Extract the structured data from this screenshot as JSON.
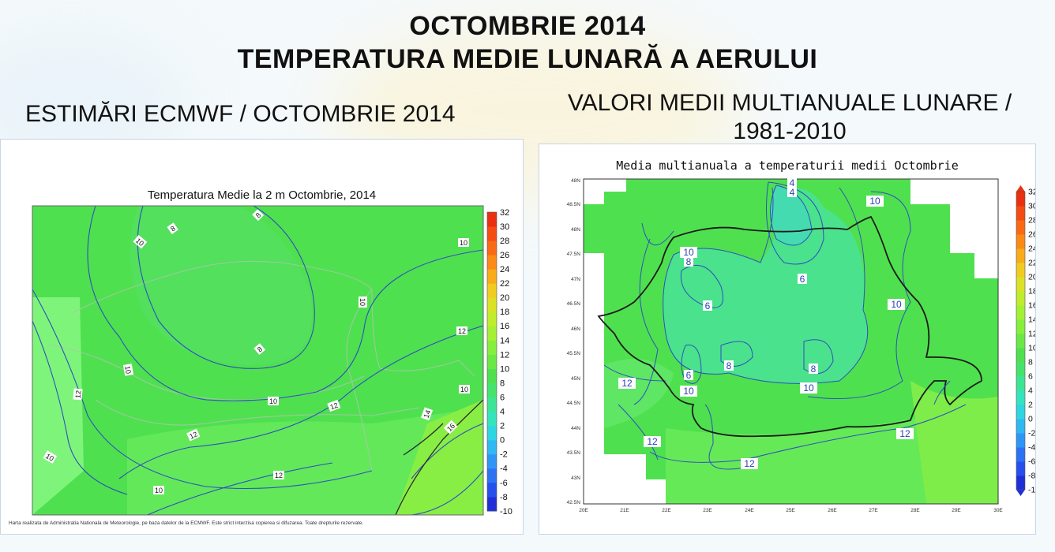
{
  "header": {
    "title_line1": "OCTOMBRIE 2014",
    "title_line2": "TEMPERATURA MEDIE LUNARĂ A AERULUI"
  },
  "left_panel": {
    "heading": "ESTIMĂRI ECMWF / OCTOMBRIE 2014",
    "map_title": "Temperatura Medie la 2 m Octombrie, 2014",
    "credit": "Harta realizata de Administratia Nationala de Meteorologie, pe baza datelor de la ECMWF. Este strict interzisa copierea si difuzarea. Toate drepturile rezervate.",
    "contour_labels": [
      "8",
      "8",
      "10",
      "10",
      "10",
      "10",
      "8",
      "12",
      "10",
      "12",
      "10",
      "12",
      "12",
      "10",
      "12",
      "16",
      "14",
      "10"
    ],
    "colorbar_ticks": [
      "32",
      "30",
      "28",
      "26",
      "24",
      "22",
      "20",
      "18",
      "16",
      "14",
      "12",
      "10",
      "8",
      "6",
      "4",
      "2",
      "0",
      "-2",
      "-4",
      "-6",
      "-8",
      "-10"
    ]
  },
  "right_panel": {
    "heading_line1": "VALORI MEDII MULTIANUALE LUNARE /",
    "heading_line2": "1981-2010",
    "map_title": "Media multianuala a temperaturii medii Octombrie",
    "lat_ticks": [
      "48N",
      "48.5N",
      "48N",
      "47.5N",
      "47N",
      "46.5N",
      "46N",
      "45.5N",
      "45N",
      "44.5N",
      "44N",
      "43.5N",
      "43N",
      "42.5N"
    ],
    "lon_ticks": [
      "20E",
      "21E",
      "22E",
      "23E",
      "24E",
      "25E",
      "26E",
      "27E",
      "28E",
      "29E",
      "30E"
    ],
    "contour_labels": [
      "4",
      "4",
      "10",
      "10",
      "8",
      "6",
      "6",
      "10",
      "8",
      "6",
      "8",
      "10",
      "12",
      "10",
      "12",
      "12",
      "12"
    ],
    "colorbar_ticks": [
      "32",
      "30",
      "28",
      "26",
      "24",
      "22",
      "20",
      "18",
      "16",
      "14",
      "12",
      "10",
      "8",
      "6",
      "4",
      "2",
      "0",
      "-2",
      "-4",
      "-6",
      "-8",
      "-10"
    ]
  },
  "colors": {
    "field_main": "#4fe04f",
    "field_light": "#7ef57a",
    "field_cool": "#48e3a0",
    "field_warm": "#88ee44",
    "contour": "#2f4fbf",
    "border": "#1a1a1a"
  }
}
